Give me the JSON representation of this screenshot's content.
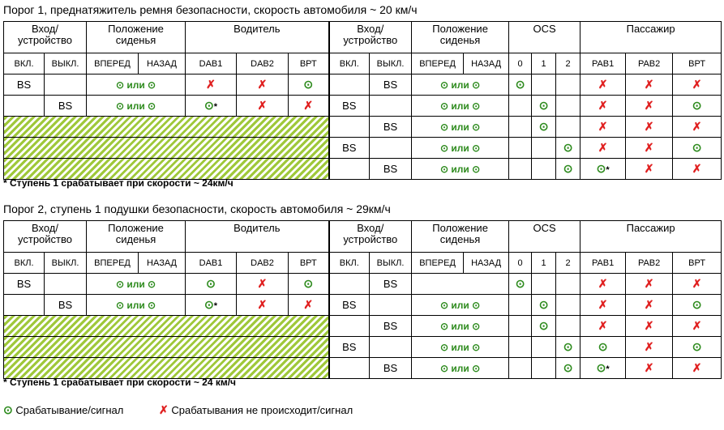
{
  "section1": {
    "title": "Порог 1, преднатяжитель ремня безопасности, скорость автомобиля ~ 20 км/ч",
    "footnote": "* Ступень 1 срабатывает при скорости ~ 24км/ч",
    "rows": [
      [
        "BS",
        "",
        "okor",
        "no",
        "no",
        "ok",
        "",
        "BS",
        "okor",
        "ok",
        "",
        "",
        "no",
        "no",
        "no"
      ],
      [
        "",
        "BS",
        "okor",
        "ok*",
        "no",
        "no",
        "BS",
        "",
        "okor",
        "",
        "ok",
        "",
        "no",
        "no",
        "ok"
      ],
      [
        "H",
        "H",
        "H",
        "H",
        "H",
        "H",
        "",
        "BS",
        "okor",
        "",
        "ok",
        "",
        "no",
        "no",
        "no"
      ],
      [
        "H",
        "H",
        "H",
        "H",
        "H",
        "H",
        "BS",
        "",
        "okor",
        "",
        "",
        "ok",
        "no",
        "no",
        "ok"
      ],
      [
        "H",
        "H",
        "H",
        "H",
        "H",
        "H",
        "",
        "BS",
        "okor",
        "",
        "",
        "ok",
        "ok*",
        "no",
        "no"
      ]
    ]
  },
  "section2": {
    "title": "Порог 2, ступень 1 подушки безопасности, скорость автомобиля ~ 29км/ч",
    "footnote": "* Ступень 1 срабатывает при скорости ~ 24 км/ч",
    "rows": [
      [
        "BS",
        "",
        "okor",
        "ok",
        "no",
        "ok",
        "",
        "BS",
        "",
        "ok",
        "",
        "",
        "no",
        "no",
        "no"
      ],
      [
        "",
        "BS",
        "okor",
        "ok*",
        "no",
        "no",
        "BS",
        "",
        "okor",
        "",
        "ok",
        "",
        "no",
        "no",
        "ok"
      ],
      [
        "H",
        "H",
        "H",
        "H",
        "H",
        "H",
        "",
        "BS",
        "okor",
        "",
        "ok",
        "",
        "no",
        "no",
        "no"
      ],
      [
        "H",
        "H",
        "H",
        "H",
        "H",
        "H",
        "BS",
        "",
        "okor",
        "",
        "",
        "ok",
        "ok",
        "no",
        "ok"
      ],
      [
        "H",
        "H",
        "H",
        "H",
        "H",
        "H",
        "",
        "BS",
        "okor",
        "",
        "",
        "ok",
        "ok*",
        "no",
        "no"
      ]
    ]
  },
  "header": {
    "entry": "Вход/",
    "device": "устройство",
    "seat1": "Положение",
    "seat2": "сиденья",
    "driver": "Водитель",
    "ocs": "OCS",
    "passenger": "Пассажир",
    "on": "ВКЛ.",
    "off": "ВЫКЛ.",
    "forward": "ВПЕРЕД",
    "back": "НАЗАД",
    "dab1": "DAB1",
    "dab2": "DAB2",
    "vrt": "ВРТ",
    "ocs0": "0",
    "ocs1": "1",
    "ocs2": "2",
    "pab1": "PAB1",
    "pab2": "PAB2",
    "prt": "ВРТ"
  },
  "symbols": {
    "ok": "⊙",
    "no": "✗",
    "or_text": " или ",
    "star": "*"
  },
  "legend": {
    "ok_label": "Срабатывание/сигнал",
    "no_label": "Срабатывания не происходит/сигнал"
  },
  "colors": {
    "ok": "#2e8b1e",
    "no": "#e02020",
    "hatch": "#9fc83a"
  }
}
